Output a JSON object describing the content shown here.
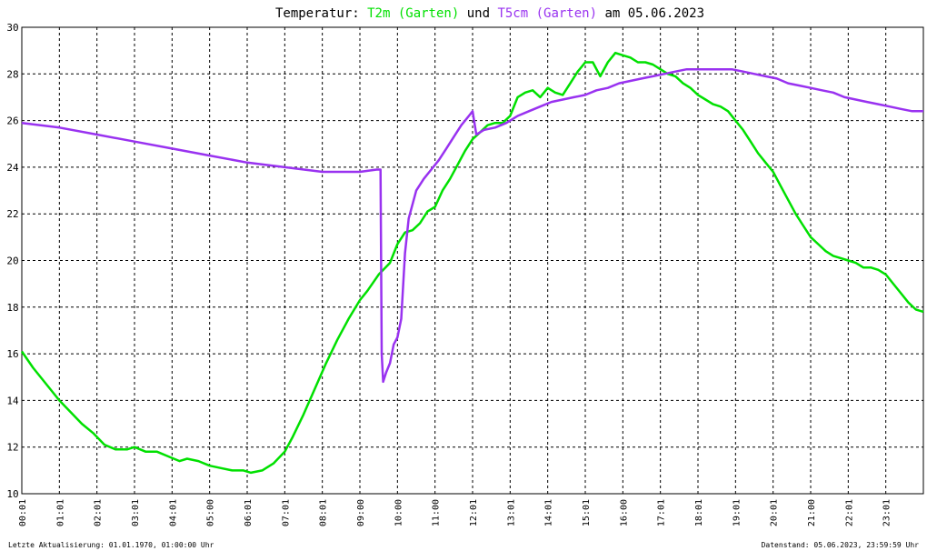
{
  "chart_data": {
    "type": "line",
    "title_parts": [
      {
        "text": "Temperatur: ",
        "color": "#000000"
      },
      {
        "text": "T2m (Garten)",
        "color": "#00e000"
      },
      {
        "text": " und ",
        "color": "#000000"
      },
      {
        "text": "T5cm (Garten)",
        "color": "#9932f0"
      },
      {
        "text": " am 05.06.2023",
        "color": "#000000"
      }
    ],
    "x_unit": "hours since 00:00 on 05.06.2023",
    "xlim": [
      0,
      24
    ],
    "ylim": [
      10,
      30
    ],
    "x_ticks": [
      "00:01",
      "01:01",
      "02:01",
      "03:01",
      "04:01",
      "05:00",
      "06:01",
      "07:01",
      "08:01",
      "09:00",
      "10:00",
      "11:00",
      "12:01",
      "13:01",
      "14:01",
      "15:01",
      "16:00",
      "17:01",
      "18:01",
      "19:01",
      "20:01",
      "21:00",
      "22:01",
      "23:01"
    ],
    "y_ticks": [
      10,
      12,
      14,
      16,
      18,
      20,
      22,
      24,
      26,
      28,
      30
    ],
    "grid": true,
    "series": [
      {
        "name": "T2m (Garten)",
        "color": "#00e000",
        "points": [
          [
            0,
            16.1
          ],
          [
            0.3,
            15.4
          ],
          [
            0.6,
            14.8
          ],
          [
            1.0,
            14.0
          ],
          [
            1.3,
            13.5
          ],
          [
            1.6,
            13.0
          ],
          [
            1.9,
            12.6
          ],
          [
            2.2,
            12.1
          ],
          [
            2.5,
            11.9
          ],
          [
            2.8,
            11.9
          ],
          [
            3.0,
            12.0
          ],
          [
            3.3,
            11.8
          ],
          [
            3.6,
            11.8
          ],
          [
            3.9,
            11.6
          ],
          [
            4.2,
            11.4
          ],
          [
            4.4,
            11.5
          ],
          [
            4.7,
            11.4
          ],
          [
            5.0,
            11.2
          ],
          [
            5.3,
            11.1
          ],
          [
            5.6,
            11.0
          ],
          [
            5.9,
            11.0
          ],
          [
            6.1,
            10.9
          ],
          [
            6.4,
            11.0
          ],
          [
            6.7,
            11.3
          ],
          [
            7.0,
            11.8
          ],
          [
            7.2,
            12.4
          ],
          [
            7.5,
            13.4
          ],
          [
            7.8,
            14.5
          ],
          [
            8.1,
            15.6
          ],
          [
            8.4,
            16.6
          ],
          [
            8.7,
            17.5
          ],
          [
            9.0,
            18.3
          ],
          [
            9.2,
            18.7
          ],
          [
            9.5,
            19.4
          ],
          [
            9.8,
            19.9
          ],
          [
            10.0,
            20.7
          ],
          [
            10.2,
            21.2
          ],
          [
            10.4,
            21.3
          ],
          [
            10.6,
            21.6
          ],
          [
            10.8,
            22.1
          ],
          [
            11.0,
            22.3
          ],
          [
            11.2,
            23.0
          ],
          [
            11.4,
            23.5
          ],
          [
            11.6,
            24.1
          ],
          [
            11.8,
            24.7
          ],
          [
            12.0,
            25.2
          ],
          [
            12.2,
            25.5
          ],
          [
            12.4,
            25.8
          ],
          [
            12.6,
            25.9
          ],
          [
            12.8,
            25.9
          ],
          [
            13.0,
            26.2
          ],
          [
            13.2,
            27.0
          ],
          [
            13.4,
            27.2
          ],
          [
            13.6,
            27.3
          ],
          [
            13.8,
            27.0
          ],
          [
            14.0,
            27.4
          ],
          [
            14.2,
            27.2
          ],
          [
            14.4,
            27.1
          ],
          [
            14.6,
            27.6
          ],
          [
            14.8,
            28.1
          ],
          [
            15.0,
            28.5
          ],
          [
            15.2,
            28.5
          ],
          [
            15.4,
            27.9
          ],
          [
            15.6,
            28.5
          ],
          [
            15.8,
            28.9
          ],
          [
            16.0,
            28.8
          ],
          [
            16.2,
            28.7
          ],
          [
            16.4,
            28.5
          ],
          [
            16.6,
            28.5
          ],
          [
            16.8,
            28.4
          ],
          [
            17.0,
            28.2
          ],
          [
            17.2,
            28.0
          ],
          [
            17.4,
            27.9
          ],
          [
            17.6,
            27.6
          ],
          [
            17.8,
            27.4
          ],
          [
            18.0,
            27.1
          ],
          [
            18.2,
            26.9
          ],
          [
            18.4,
            26.7
          ],
          [
            18.6,
            26.6
          ],
          [
            18.8,
            26.4
          ],
          [
            19.0,
            26.0
          ],
          [
            19.2,
            25.6
          ],
          [
            19.4,
            25.1
          ],
          [
            19.6,
            24.6
          ],
          [
            19.8,
            24.2
          ],
          [
            20.0,
            23.8
          ],
          [
            20.2,
            23.2
          ],
          [
            20.4,
            22.6
          ],
          [
            20.6,
            22.0
          ],
          [
            20.8,
            21.5
          ],
          [
            21.0,
            21.0
          ],
          [
            21.2,
            20.7
          ],
          [
            21.4,
            20.4
          ],
          [
            21.6,
            20.2
          ],
          [
            21.8,
            20.1
          ],
          [
            22.0,
            20.0
          ],
          [
            22.2,
            19.9
          ],
          [
            22.4,
            19.7
          ],
          [
            22.6,
            19.7
          ],
          [
            22.8,
            19.6
          ],
          [
            23.0,
            19.4
          ],
          [
            23.2,
            19.0
          ],
          [
            23.4,
            18.6
          ],
          [
            23.6,
            18.2
          ],
          [
            23.8,
            17.9
          ],
          [
            24.0,
            17.8
          ]
        ]
      },
      {
        "name": "T5cm (Garten)",
        "color": "#9932f0",
        "points": [
          [
            0,
            25.9
          ],
          [
            1.0,
            25.7
          ],
          [
            2.0,
            25.4
          ],
          [
            3.0,
            25.1
          ],
          [
            4.0,
            24.8
          ],
          [
            5.0,
            24.5
          ],
          [
            6.0,
            24.2
          ],
          [
            7.0,
            24.0
          ],
          [
            8.0,
            23.8
          ],
          [
            9.0,
            23.8
          ],
          [
            9.45,
            23.9
          ],
          [
            9.55,
            23.9
          ],
          [
            9.58,
            16.0
          ],
          [
            9.62,
            14.8
          ],
          [
            9.7,
            15.2
          ],
          [
            9.8,
            15.6
          ],
          [
            9.9,
            16.4
          ],
          [
            10.0,
            16.7
          ],
          [
            10.1,
            17.5
          ],
          [
            10.2,
            20.3
          ],
          [
            10.3,
            21.8
          ],
          [
            10.5,
            23.0
          ],
          [
            10.7,
            23.5
          ],
          [
            10.9,
            23.9
          ],
          [
            11.1,
            24.3
          ],
          [
            11.3,
            24.8
          ],
          [
            11.5,
            25.3
          ],
          [
            11.7,
            25.8
          ],
          [
            11.9,
            26.2
          ],
          [
            12.0,
            26.4
          ],
          [
            12.1,
            25.4
          ],
          [
            12.3,
            25.6
          ],
          [
            12.6,
            25.7
          ],
          [
            12.9,
            25.9
          ],
          [
            13.2,
            26.2
          ],
          [
            13.5,
            26.4
          ],
          [
            13.8,
            26.6
          ],
          [
            14.1,
            26.8
          ],
          [
            14.4,
            26.9
          ],
          [
            14.7,
            27.0
          ],
          [
            15.0,
            27.1
          ],
          [
            15.3,
            27.3
          ],
          [
            15.6,
            27.4
          ],
          [
            15.9,
            27.6
          ],
          [
            16.2,
            27.7
          ],
          [
            16.5,
            27.8
          ],
          [
            16.8,
            27.9
          ],
          [
            17.1,
            28.0
          ],
          [
            17.4,
            28.1
          ],
          [
            17.7,
            28.2
          ],
          [
            18.0,
            28.2
          ],
          [
            18.3,
            28.2
          ],
          [
            18.6,
            28.2
          ],
          [
            18.9,
            28.2
          ],
          [
            19.2,
            28.1
          ],
          [
            19.5,
            28.0
          ],
          [
            19.8,
            27.9
          ],
          [
            20.1,
            27.8
          ],
          [
            20.4,
            27.6
          ],
          [
            20.7,
            27.5
          ],
          [
            21.0,
            27.4
          ],
          [
            21.3,
            27.3
          ],
          [
            21.6,
            27.2
          ],
          [
            21.9,
            27.0
          ],
          [
            22.2,
            26.9
          ],
          [
            22.5,
            26.8
          ],
          [
            22.8,
            26.7
          ],
          [
            23.1,
            26.6
          ],
          [
            23.4,
            26.5
          ],
          [
            23.7,
            26.4
          ],
          [
            24.0,
            26.4
          ]
        ]
      }
    ]
  },
  "footer": {
    "last_update": "Letzte Aktualisierung: 01.01.1970, 01:00:00 Uhr",
    "data_state": "Datenstand: 05.06.2023, 23:59:59 Uhr"
  },
  "colors": {
    "grid": "#000000",
    "background": "#ffffff",
    "t2m": "#00e000",
    "t5cm": "#9932f0"
  }
}
